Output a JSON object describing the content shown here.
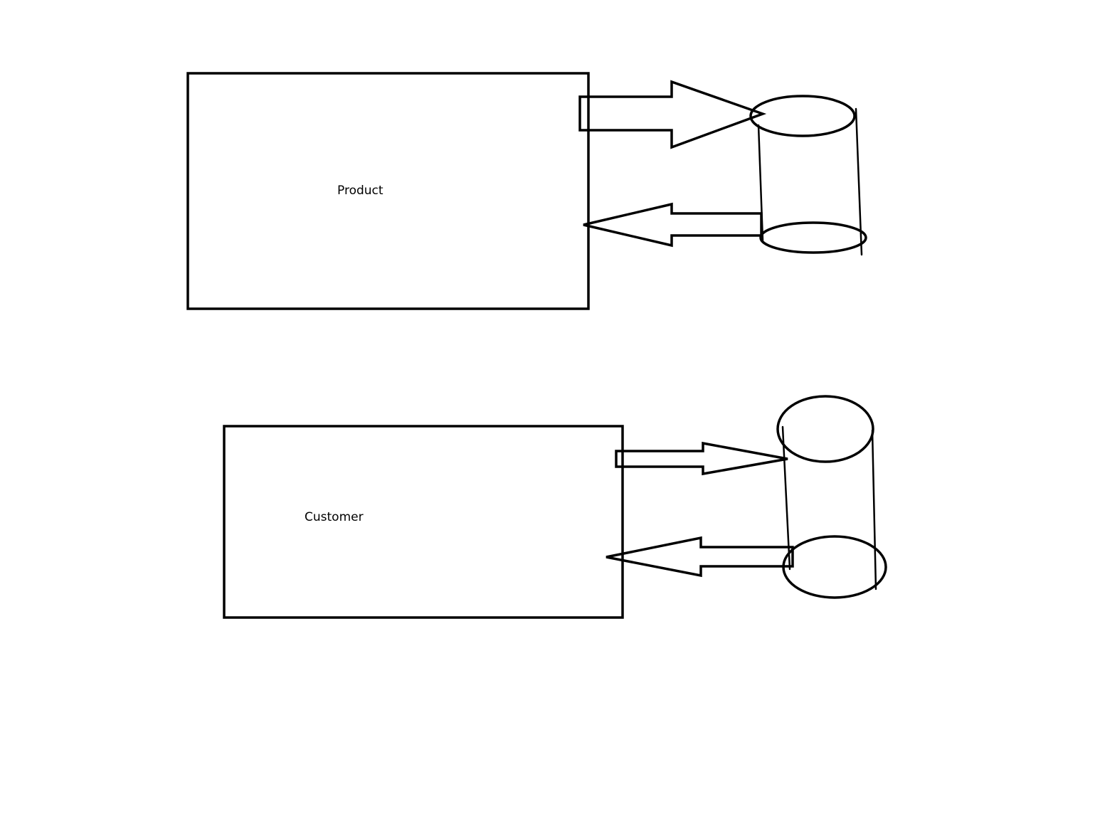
{
  "diagram": {
    "entities": [
      {
        "label": "Product"
      },
      {
        "label": "Customer"
      }
    ]
  }
}
